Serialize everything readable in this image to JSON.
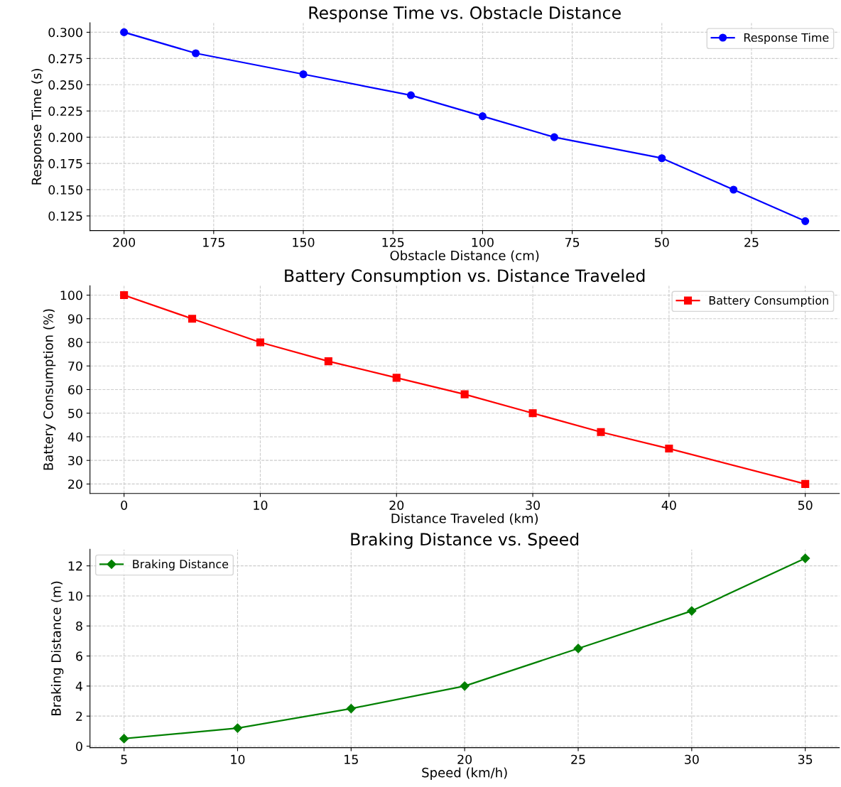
{
  "chart_data": [
    {
      "type": "line",
      "title": "Response Time vs. Obstacle Distance",
      "xlabel": "Obstacle Distance (cm)",
      "ylabel": "Response Time (s)",
      "x": [
        200,
        180,
        150,
        120,
        100,
        80,
        50,
        30,
        10
      ],
      "series": [
        {
          "name": "Response Time",
          "color": "#0000ff",
          "values": [
            0.3,
            0.28,
            0.26,
            0.24,
            0.22,
            0.2,
            0.18,
            0.15,
            0.12
          ]
        }
      ],
      "xlim": [
        209.5,
        0.5
      ],
      "xticks": [
        200,
        175,
        150,
        125,
        100,
        75,
        50,
        25
      ],
      "ylim": [
        0.111,
        0.309
      ],
      "yticks": [
        {
          "value": 0.125,
          "label": "0.125"
        },
        {
          "value": 0.15,
          "label": "0.150"
        },
        {
          "value": 0.175,
          "label": "0.175"
        },
        {
          "value": 0.2,
          "label": "0.200"
        },
        {
          "value": 0.225,
          "label": "0.225"
        },
        {
          "value": 0.25,
          "label": "0.250"
        },
        {
          "value": 0.275,
          "label": "0.275"
        },
        {
          "value": 0.3,
          "label": "0.300"
        }
      ],
      "grid": true,
      "legend": "top right",
      "marker": "circle",
      "line_style": "solid"
    },
    {
      "type": "line",
      "title": "Battery Consumption vs. Distance Traveled",
      "xlabel": "Distance Traveled (km)",
      "ylabel": "Battery Consumption (%)",
      "x": [
        0,
        5,
        10,
        15,
        20,
        25,
        30,
        35,
        40,
        50
      ],
      "series": [
        {
          "name": "Battery Consumption",
          "color": "#ff0000",
          "values": [
            100,
            90,
            80,
            72,
            65,
            58,
            50,
            42,
            35,
            20
          ]
        }
      ],
      "xlim": [
        -2.5,
        52.5
      ],
      "xticks": [
        0,
        10,
        20,
        30,
        40,
        50
      ],
      "ylim": [
        16,
        104
      ],
      "yticks": [
        20,
        30,
        40,
        50,
        60,
        70,
        80,
        90,
        100
      ],
      "grid": true,
      "legend": "top right",
      "marker": "square",
      "line_style": "solid"
    },
    {
      "type": "line",
      "title": "Braking Distance vs. Speed",
      "xlabel": "Speed (km/h)",
      "ylabel": "Braking Distance (m)",
      "x": [
        5,
        10,
        15,
        20,
        25,
        30,
        35
      ],
      "series": [
        {
          "name": "Braking Distance",
          "color": "#008000",
          "values": [
            0.5,
            1.2,
            2.5,
            4,
            6.5,
            9,
            12.5
          ]
        }
      ],
      "xlim": [
        3.5,
        36.5
      ],
      "xticks": [
        5,
        10,
        15,
        20,
        25,
        30,
        35
      ],
      "ylim": [
        -0.1,
        13.1
      ],
      "yticks": [
        0,
        2,
        4,
        6,
        8,
        10,
        12
      ],
      "grid": true,
      "legend": "top left",
      "marker": "diamond",
      "line_style": "solid"
    }
  ]
}
